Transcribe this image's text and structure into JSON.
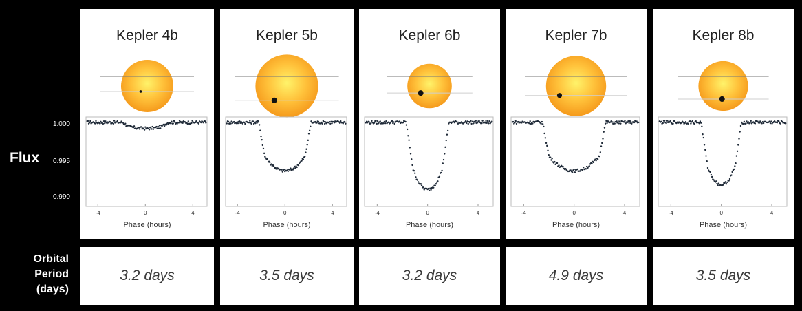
{
  "labels": {
    "flux": "Flux",
    "orbital_period": [
      "Orbital",
      "Period",
      "(days)"
    ],
    "y_ticks": [
      "1.000",
      "0.995",
      "0.990"
    ],
    "xlabel": "Phase (hours)"
  },
  "colors": {
    "background": "#000000",
    "panel": "#ffffff",
    "star_center": "#fff36a",
    "star_mid": "#ffc13a",
    "star_edge": "#f59a1c",
    "points": "#1f2a38"
  },
  "chart_data": [
    {
      "type": "scatter",
      "title": "Kepler 4b",
      "xlabel": "Phase (hours)",
      "ylabel": "Flux",
      "xlim": [
        -5,
        5.2
      ],
      "ylim": [
        0.9875,
        1.0008
      ],
      "x_ticks": [
        -4,
        0,
        4
      ],
      "x_tick_labels": [
        "-4",
        "0",
        "4"
      ],
      "y_ticks": [
        1.0,
        0.995,
        0.99
      ],
      "y_tick_labels": [
        "1.000",
        "0.995",
        "0.990"
      ],
      "transit": {
        "depth": 0.0009,
        "half_duration_hours": 1.9,
        "ingress_hours": 0.5
      },
      "orbital_period": "3.2 days",
      "star_radius_rel": 1.0,
      "planet_radius_rel": 0.04,
      "planet_offset": [
        0.25,
        0.3
      ]
    },
    {
      "type": "scatter",
      "title": "Kepler 5b",
      "xlabel": "Phase (hours)",
      "ylabel": "Flux",
      "xlim": [
        -5,
        5.2
      ],
      "ylim": [
        0.9875,
        1.0008
      ],
      "x_ticks": [
        -4,
        0,
        4
      ],
      "x_tick_labels": [
        "-4",
        "0",
        "4"
      ],
      "y_ticks": [
        1.0,
        0.995,
        0.99
      ],
      "y_tick_labels": [
        "1.000",
        "0.995",
        "0.990"
      ],
      "transit": {
        "depth": 0.0072,
        "half_duration_hours": 2.2,
        "ingress_hours": 0.5
      },
      "orbital_period": "3.5 days",
      "star_radius_rel": 1.2,
      "planet_radius_rel": 0.09,
      "planet_offset": [
        0.4,
        0.65
      ]
    },
    {
      "type": "scatter",
      "title": "Kepler 6b",
      "xlabel": "Phase (hours)",
      "ylabel": "Flux",
      "xlim": [
        -5,
        5.2
      ],
      "ylim": [
        0.9875,
        1.0008
      ],
      "x_ticks": [
        -4,
        0,
        4
      ],
      "x_tick_labels": [
        "-4",
        "0",
        "4"
      ],
      "y_ticks": [
        1.0,
        0.995,
        0.99
      ],
      "y_tick_labels": [
        "1.000",
        "0.995",
        "0.990"
      ],
      "transit": {
        "depth": 0.01,
        "half_duration_hours": 1.7,
        "ingress_hours": 0.55
      },
      "orbital_period": "3.2 days",
      "star_radius_rel": 0.85,
      "planet_radius_rel": 0.09,
      "planet_offset": [
        0.4,
        0.45
      ]
    },
    {
      "type": "scatter",
      "title": "Kepler 7b",
      "xlabel": "Phase (hours)",
      "ylabel": "Flux",
      "xlim": [
        -5,
        5.2
      ],
      "ylim": [
        0.9875,
        1.0008
      ],
      "x_ticks": [
        -4,
        0,
        4
      ],
      "x_tick_labels": [
        "-4",
        "0",
        "4"
      ],
      "y_ticks": [
        1.0,
        0.995,
        0.99
      ],
      "y_tick_labels": [
        "1.000",
        "0.995",
        "0.990"
      ],
      "transit": {
        "depth": 0.0072,
        "half_duration_hours": 2.5,
        "ingress_hours": 0.5
      },
      "orbital_period": "4.9 days",
      "star_radius_rel": 1.15,
      "planet_radius_rel": 0.08,
      "planet_offset": [
        0.55,
        0.45
      ]
    },
    {
      "type": "scatter",
      "title": "Kepler 8b",
      "xlabel": "Phase (hours)",
      "ylabel": "Flux",
      "xlim": [
        -5,
        5.2
      ],
      "ylim": [
        0.9875,
        1.0008
      ],
      "x_ticks": [
        -4,
        0,
        4
      ],
      "x_tick_labels": [
        "-4",
        "0",
        "4"
      ],
      "y_ticks": [
        1.0,
        0.995,
        0.99
      ],
      "y_tick_labels": [
        "1.000",
        "0.995",
        "0.990"
      ],
      "transit": {
        "depth": 0.0093,
        "half_duration_hours": 1.6,
        "ingress_hours": 0.5
      },
      "orbital_period": "3.5 days",
      "star_radius_rel": 0.95,
      "planet_radius_rel": 0.09,
      "planet_offset": [
        0.05,
        0.75
      ]
    }
  ]
}
